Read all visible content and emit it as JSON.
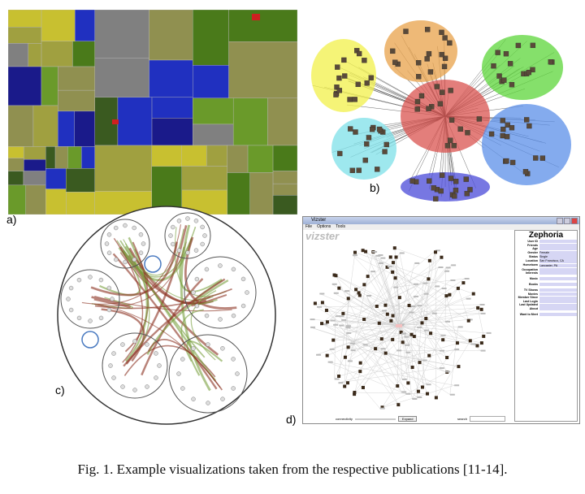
{
  "figure": {
    "panel_labels": [
      "a)",
      "b)",
      "c)",
      "d)"
    ],
    "caption": "Fig. 1. Example visualizations taken from the respective publications [11-14]."
  },
  "vizster": {
    "window_title": "Vizster",
    "menu": [
      "File",
      "Options",
      "Tools"
    ],
    "logo": "vizster",
    "profile_name": "Zephoria",
    "fields": [
      {
        "k": "User ID",
        "v": ""
      },
      {
        "k": "Friends",
        "v": ""
      },
      {
        "k": "Age",
        "v": ""
      },
      {
        "k": "Gender",
        "v": "Female"
      },
      {
        "k": "Status",
        "v": "Single"
      },
      {
        "k": "Location",
        "v": "San Francisco, CA"
      },
      {
        "k": "Hometown",
        "v": "Lancaster, PA"
      },
      {
        "k": "Occupation",
        "v": ""
      },
      {
        "k": "Interests",
        "v": ""
      },
      {
        "k": "Music",
        "v": ""
      },
      {
        "k": "Books",
        "v": ""
      },
      {
        "k": "TV Shows",
        "v": ""
      },
      {
        "k": "Movies",
        "v": ""
      },
      {
        "k": "Member Since",
        "v": ""
      },
      {
        "k": "Last Login",
        "v": ""
      },
      {
        "k": "Last Updated",
        "v": ""
      },
      {
        "k": "About",
        "v": ""
      },
      {
        "k": "Want to Meet",
        "v": ""
      }
    ],
    "connectivity_label": "connectivity",
    "button_label": "Expand",
    "search_label": "search"
  },
  "colors": {
    "treemap_bg": "#2a2a2a",
    "cluster_red": "#d9534f",
    "cluster_orange": "#e8a24a",
    "cluster_green": "#5cd63a",
    "cluster_yellow": "#f2f04a",
    "cluster_cyan": "#7ee0e8",
    "cluster_blue": "#5b8fe8",
    "cluster_purple": "#4a4ad8"
  }
}
